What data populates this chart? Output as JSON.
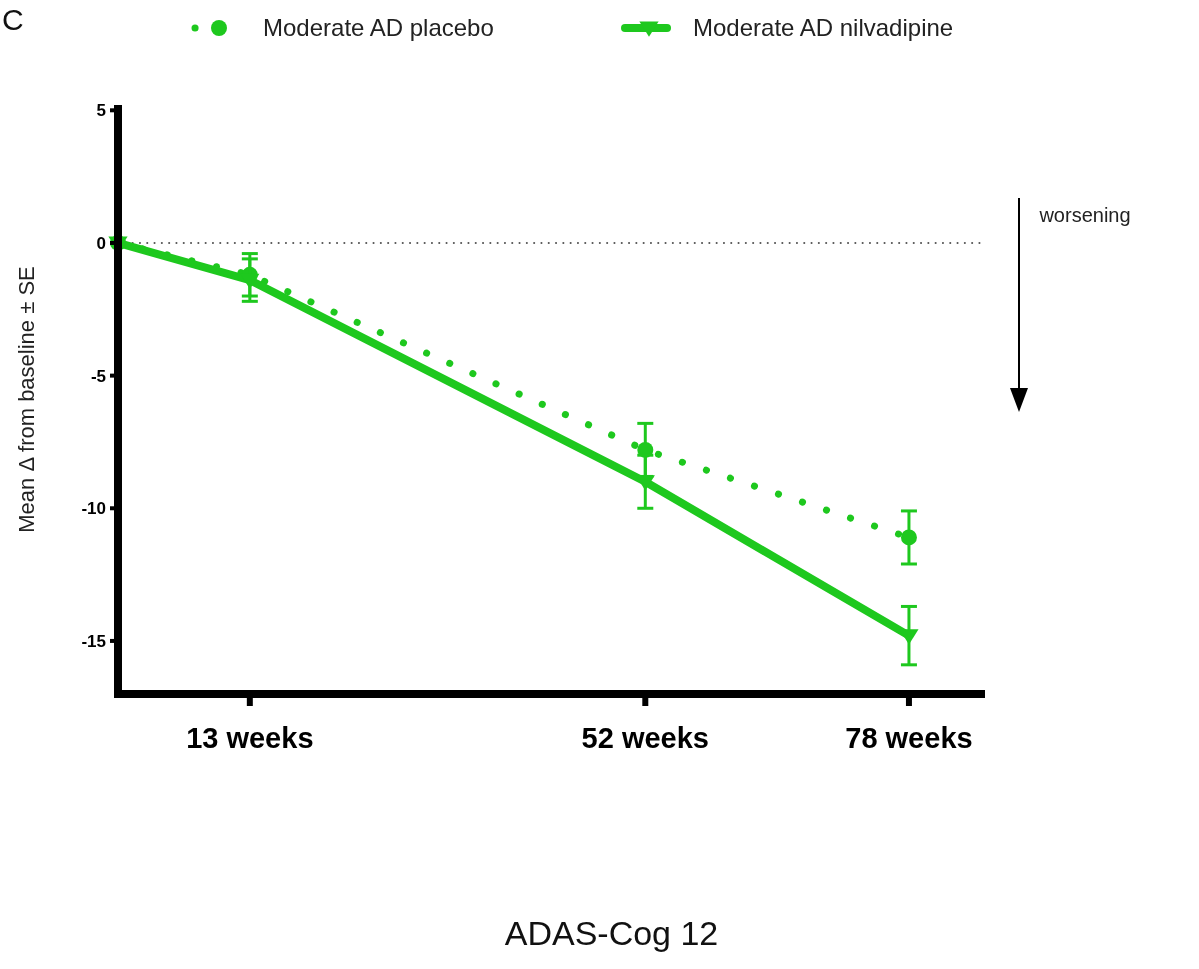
{
  "chart_data": {
    "type": "line",
    "xlabel": "ADAS-Cog 12",
    "ylabel": "Mean Δ from baseline ± SE",
    "annotations": [
      "C",
      "worsening"
    ],
    "x": [
      0,
      13,
      52,
      78
    ],
    "xlim": [
      0,
      85.5
    ],
    "xticks": [
      {
        "value": 13,
        "label": "13 weeks"
      },
      {
        "value": 52,
        "label": "52 weeks"
      },
      {
        "value": 78,
        "label": "78 weeks"
      }
    ],
    "ylim": [
      -17,
      5.2
    ],
    "yticks": [
      5,
      0,
      -5,
      -10,
      -15
    ],
    "series": [
      {
        "name": "Moderate AD placebo",
        "color": "#1ec81e",
        "values": [
          0,
          -1.2,
          -7.8,
          -11.1
        ],
        "errors": [
          null,
          0.8,
          1.0,
          1.0
        ],
        "marker": "circle",
        "line_style": "dotted"
      },
      {
        "name": "Moderate AD nilvadipine",
        "color": "#1ec81e",
        "values": [
          0,
          -1.4,
          -9.0,
          -14.8
        ],
        "errors": [
          null,
          0.8,
          1.0,
          1.1
        ],
        "marker": "triangle",
        "line_style": "solid"
      }
    ],
    "ref_lines": [
      {
        "axis": "y",
        "value": 0,
        "color": "#555555",
        "line_style": "dotted"
      }
    ],
    "legend": "top",
    "grid": false
  }
}
